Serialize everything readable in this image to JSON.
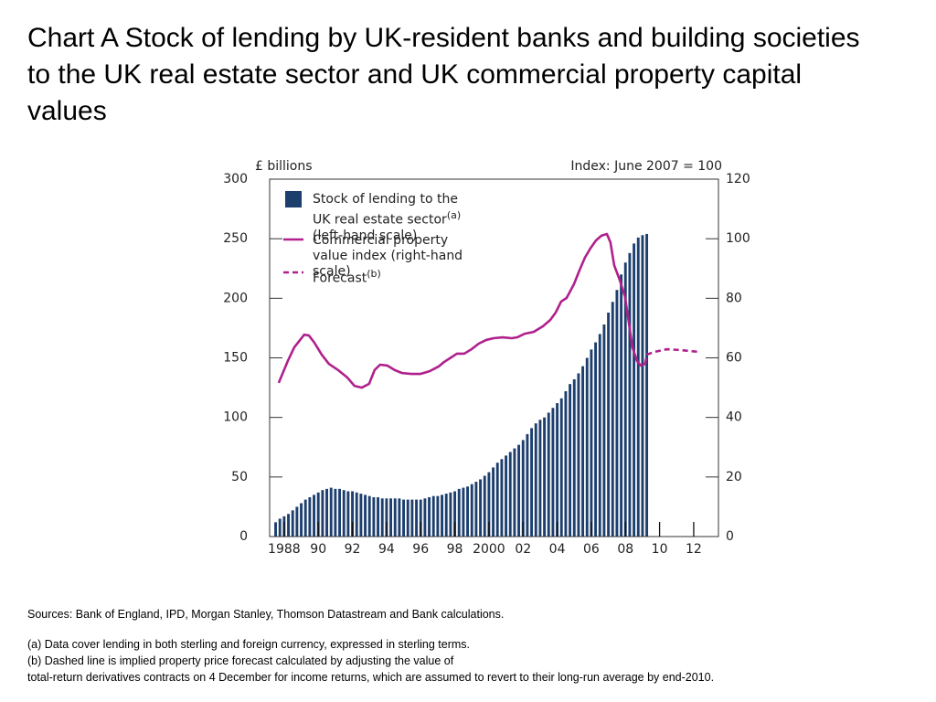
{
  "chart_data": {
    "type": "bar",
    "title": "Chart A  Stock of lending by UK-resident banks and building societies to the UK real estate sector and UK commercial property capital values",
    "ylabel": "£ billions",
    "y2label": "Index:  June 2007 = 100",
    "xlim": [
      1987.15,
      2013.45
    ],
    "xticks": [
      {
        "value": 1988,
        "label": "1988"
      },
      {
        "value": 1990,
        "label": "90"
      },
      {
        "value": 1992,
        "label": "92"
      },
      {
        "value": 1994,
        "label": "94"
      },
      {
        "value": 1996,
        "label": "96"
      },
      {
        "value": 1998,
        "label": "98"
      },
      {
        "value": 2000,
        "label": "2000"
      },
      {
        "value": 2002,
        "label": "02"
      },
      {
        "value": 2004,
        "label": "04"
      },
      {
        "value": 2006,
        "label": "06"
      },
      {
        "value": 2008,
        "label": "08"
      },
      {
        "value": 2010,
        "label": "10"
      },
      {
        "value": 2012,
        "label": "12"
      }
    ],
    "ylim": [
      0,
      300
    ],
    "yticks": [
      0,
      50,
      100,
      150,
      200,
      250,
      300
    ],
    "y2lim": [
      0,
      120
    ],
    "y2ticks": [
      0,
      20,
      40,
      60,
      80,
      100,
      120
    ],
    "legend": "upper left",
    "series": [
      {
        "name": "Stock of lending to the UK real estate sector",
        "note": "(a)",
        "scale": "(left-hand scale)",
        "type": "bar",
        "color": "#1d3f6e",
        "x": [
          1987.5,
          1987.75,
          1988,
          1988.25,
          1988.5,
          1988.75,
          1989,
          1989.25,
          1989.5,
          1989.75,
          1990,
          1990.25,
          1990.5,
          1990.75,
          1991,
          1991.25,
          1991.5,
          1991.75,
          1992,
          1992.25,
          1992.5,
          1992.75,
          1993,
          1993.25,
          1993.5,
          1993.75,
          1994,
          1994.25,
          1994.5,
          1994.75,
          1995,
          1995.25,
          1995.5,
          1995.75,
          1996,
          1996.25,
          1996.5,
          1996.75,
          1997,
          1997.25,
          1997.5,
          1997.75,
          1998,
          1998.25,
          1998.5,
          1998.75,
          1999,
          1999.25,
          1999.5,
          1999.75,
          2000,
          2000.25,
          2000.5,
          2000.75,
          2001,
          2001.25,
          2001.5,
          2001.75,
          2002,
          2002.25,
          2002.5,
          2002.75,
          2003,
          2003.25,
          2003.5,
          2003.75,
          2004,
          2004.25,
          2004.5,
          2004.75,
          2005,
          2005.25,
          2005.5,
          2005.75,
          2006,
          2006.25,
          2006.5,
          2006.75,
          2007,
          2007.25,
          2007.5,
          2007.75,
          2008,
          2008.25,
          2008.5,
          2008.75,
          2009,
          2009.25
        ],
        "values": [
          12,
          15,
          17,
          19,
          22,
          25,
          28,
          31,
          33,
          35,
          37,
          39,
          40,
          41,
          40,
          40,
          39,
          38,
          38,
          37,
          36,
          35,
          34,
          33,
          33,
          32,
          32,
          32,
          32,
          32,
          31,
          31,
          31,
          31,
          31,
          32,
          33,
          34,
          34,
          35,
          36,
          37,
          38,
          40,
          41,
          42,
          44,
          46,
          48,
          51,
          54,
          58,
          62,
          65,
          68,
          71,
          74,
          77,
          81,
          86,
          91,
          95,
          98,
          100,
          104,
          108,
          112,
          116,
          122,
          128,
          132,
          137,
          143,
          150,
          157,
          163,
          170,
          178,
          188,
          197,
          207,
          220,
          230,
          238,
          246,
          251,
          253,
          254
        ]
      },
      {
        "name": "Commercial property value index",
        "scale": "(right-hand scale)",
        "type": "line",
        "axis": "y2",
        "color": "#b0208c",
        "x": [
          1987.68,
          1988.21,
          1988.59,
          1989.18,
          1989.45,
          1989.77,
          1990.2,
          1990.62,
          1991.16,
          1991.7,
          1992.12,
          1992.55,
          1992.98,
          1993.3,
          1993.62,
          1994.05,
          1994.48,
          1994.91,
          1995.45,
          1995.98,
          1996.52,
          1997.05,
          1997.37,
          1997.8,
          1998.12,
          1998.55,
          1998.98,
          1999.41,
          1999.84,
          2000.27,
          2000.8,
          2001.34,
          2001.66,
          2002.09,
          2002.62,
          2003.16,
          2003.59,
          2003.91,
          2004.23,
          2004.55,
          2004.98,
          2005.3,
          2005.62,
          2005.94,
          2006.27,
          2006.59,
          2006.91,
          2007.12,
          2007.34,
          2007.66,
          2007.98,
          2008.19,
          2008.41,
          2008.68,
          2008.9,
          2009.16
        ],
        "values": [
          51.6,
          58.9,
          63.5,
          67.8,
          67.5,
          65.1,
          61.1,
          58,
          55.9,
          53.4,
          50.6,
          50,
          51.3,
          55.9,
          57.7,
          57.4,
          55.9,
          54.9,
          54.6,
          54.6,
          55.5,
          57.1,
          58.6,
          60.2,
          61.4,
          61.4,
          62.9,
          64.8,
          66,
          66.6,
          66.9,
          66.6,
          66.9,
          68.1,
          68.7,
          70.6,
          72.7,
          75.2,
          78.9,
          80.1,
          84.7,
          89.3,
          93.6,
          96.7,
          99.4,
          101,
          101.6,
          98.8,
          91.1,
          86.2,
          80.4,
          72.1,
          63.5,
          58.9,
          57.4,
          58
        ]
      },
      {
        "name": "Forecast",
        "note": "(b)",
        "type": "line",
        "dashed": true,
        "axis": "y2",
        "color": "#b0208c",
        "x": [
          2009.16,
          2009.26,
          2009.69,
          2010.44,
          2011.25,
          2012.32
        ],
        "values": [
          58,
          61.1,
          62,
          62.9,
          62.6,
          62
        ]
      }
    ]
  },
  "sources": "Sources:  Bank of England, IPD, Morgan Stanley, Thomson Datastream and Bank calculations.",
  "notes": [
    "(a)  Data cover lending in both sterling and foreign currency, expressed in sterling terms.",
    "(b)  Dashed line is implied property price forecast calculated by adjusting the value of",
    "total-return derivatives contracts on 4 December for income returns, which are assumed to revert to their long-run average by end-2010."
  ]
}
